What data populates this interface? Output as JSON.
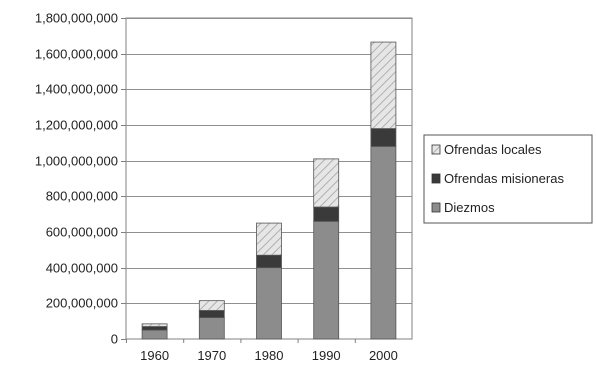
{
  "chart_data": {
    "type": "bar",
    "stacked": true,
    "categories": [
      "1960",
      "1970",
      "1980",
      "1990",
      "2000"
    ],
    "series": [
      {
        "name": "Diezmos",
        "values": [
          50000000,
          120000000,
          400000000,
          660000000,
          1080000000
        ],
        "color": "#8c8c8c"
      },
      {
        "name": "Ofrendas misioneras",
        "values": [
          20000000,
          40000000,
          70000000,
          80000000,
          100000000
        ],
        "color": "#3a3a3a"
      },
      {
        "name": "Ofrendas locales",
        "values": [
          15000000,
          55000000,
          180000000,
          270000000,
          485000000
        ],
        "color": "#d9d9d9"
      }
    ],
    "legend_order": [
      "Ofrendas locales",
      "Ofrendas misioneras",
      "Diezmos"
    ],
    "ylim": [
      0,
      1800000000
    ],
    "yticks": [
      0,
      200000000,
      400000000,
      600000000,
      800000000,
      1000000000,
      1200000000,
      1400000000,
      1600000000,
      1800000000
    ],
    "ytick_labels": [
      "0",
      "200,000,000",
      "400,000,000",
      "600,000,000",
      "800,000,000",
      "1,000,000,000",
      "1,200,000,000",
      "1,400,000,000",
      "1,600,000,000",
      "1,800,000,000"
    ],
    "grid": true,
    "legend_position": "right"
  }
}
